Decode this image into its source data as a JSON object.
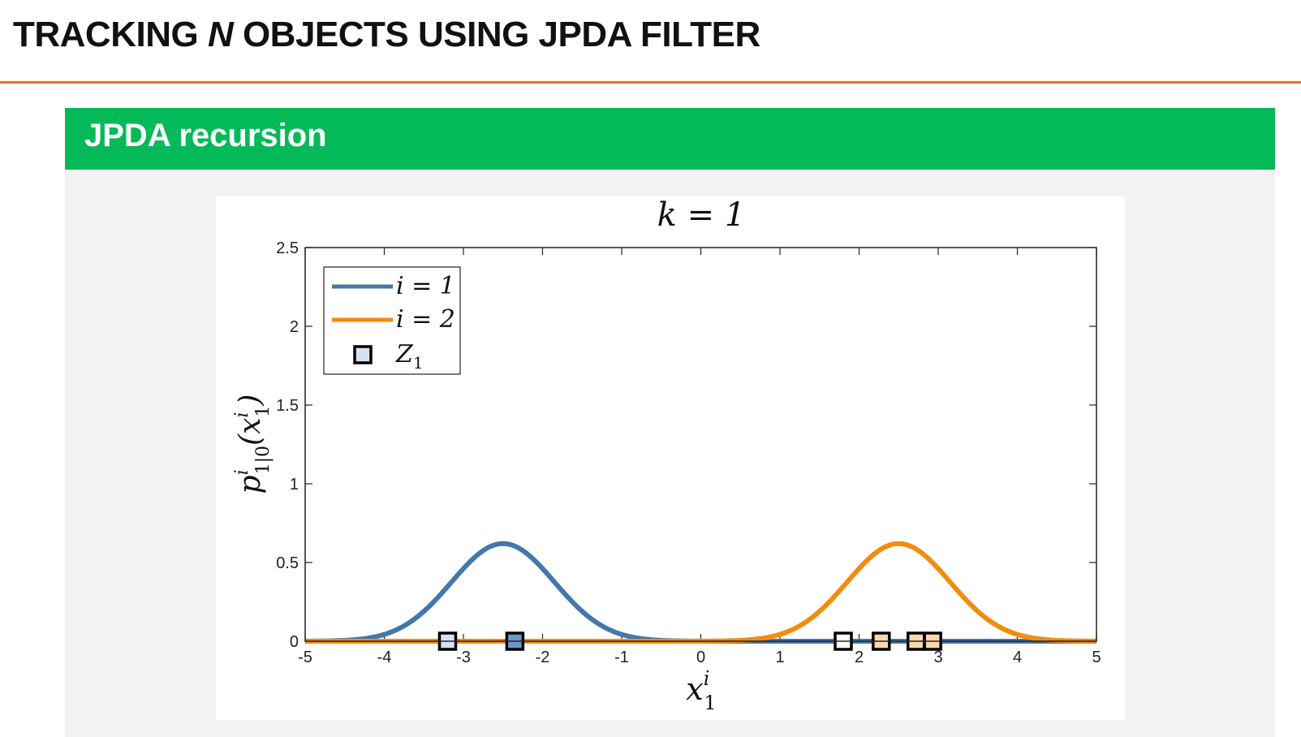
{
  "slide": {
    "title_prefix": "TRACKING ",
    "title_n": "N",
    "title_suffix": " OBJECTS USING JPDA FILTER",
    "accent_color": "#e8742a"
  },
  "block": {
    "title": "JPDA recursion",
    "header_color": "#04ba58"
  },
  "chart_data": {
    "type": "line",
    "title": "k = 1",
    "xlabel": "x_1^i",
    "ylabel": "p^i_{1|0}(x_1^i)",
    "xlim": [
      -5,
      5
    ],
    "ylim": [
      0,
      2.5
    ],
    "xticks": [
      -5,
      -4,
      -3,
      -2,
      -1,
      0,
      1,
      2,
      3,
      4,
      5
    ],
    "xtick_labels": [
      "-5",
      "-4",
      "-3",
      "-2",
      "-1",
      "0",
      "1",
      "2",
      "3",
      "4",
      "5"
    ],
    "yticks": [
      0,
      0.5,
      1,
      1.5,
      2,
      2.5
    ],
    "ytick_labels": [
      "0",
      "0.5",
      "1",
      "1.5",
      "2",
      "2.5"
    ],
    "grid": false,
    "legend_position": "top-left",
    "series": [
      {
        "name": "i = 1",
        "color": "#4477aa",
        "mean": -2.5,
        "std": 0.65,
        "peak": 0.62
      },
      {
        "name": "i = 2",
        "color": "#f28c0f",
        "mean": 2.5,
        "std": 0.65,
        "peak": 0.62
      }
    ],
    "measurements": {
      "name": "Z_1",
      "legend_color": "#d6e3ee",
      "points": [
        {
          "x": -3.2,
          "y": 0,
          "color": "#d6e3ee"
        },
        {
          "x": -2.35,
          "y": 0,
          "color": "#6a98c8"
        },
        {
          "x": 1.8,
          "y": 0,
          "color": "#ffffff"
        },
        {
          "x": 2.28,
          "y": 0,
          "color": "#fad8aa"
        },
        {
          "x": 2.72,
          "y": 0,
          "color": "#fad8aa"
        },
        {
          "x": 2.93,
          "y": 0,
          "color": "#fad8aa"
        }
      ]
    }
  }
}
